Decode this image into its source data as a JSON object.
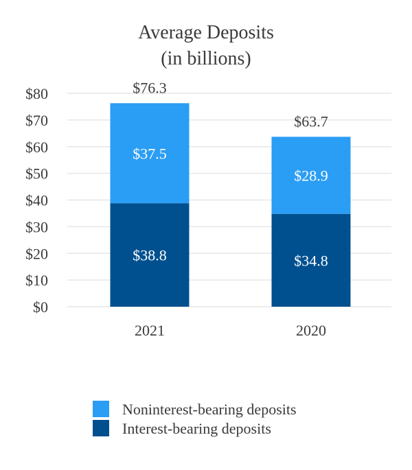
{
  "chart_data": {
    "type": "bar",
    "stacked": true,
    "title": "Average Deposits",
    "subtitle": "(in billions)",
    "categories": [
      "2021",
      "2020"
    ],
    "series": [
      {
        "name": "Interest-bearing deposits",
        "values": [
          38.8,
          34.8
        ],
        "labels": [
          "$38.8",
          "$34.8"
        ],
        "color": "#00508f"
      },
      {
        "name": "Noninterest-bearing deposits",
        "values": [
          37.5,
          28.9
        ],
        "labels": [
          "$37.5",
          "$28.9"
        ],
        "color": "#2a9df4"
      }
    ],
    "totals": [
      76.3,
      63.7
    ],
    "total_labels": [
      "$76.3",
      "$63.7"
    ],
    "ylim": [
      0,
      80
    ],
    "yticks": [
      0,
      10,
      20,
      30,
      40,
      50,
      60,
      70,
      80
    ],
    "ytick_labels": [
      "$0",
      "$10",
      "$20",
      "$30",
      "$40",
      "$50",
      "$60",
      "$70",
      "$80"
    ],
    "grid": true,
    "legend": {
      "position": "bottom",
      "entries": [
        {
          "name": "Noninterest-bearing deposits",
          "color": "#2a9df4"
        },
        {
          "name": "Interest-bearing deposits",
          "color": "#00508f"
        }
      ]
    }
  }
}
